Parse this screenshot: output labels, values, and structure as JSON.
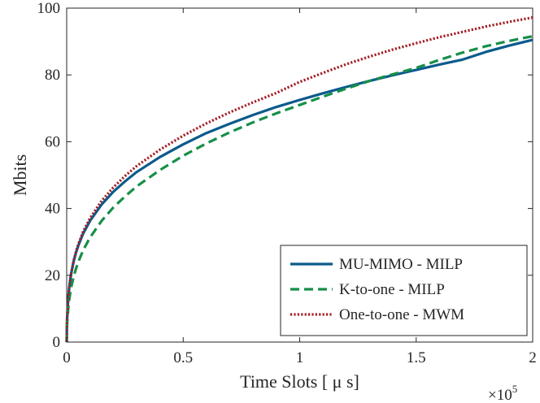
{
  "chart_data": {
    "type": "line",
    "title": "",
    "xlabel": "Time Slots [ μ s]",
    "ylabel": "Mbits",
    "xlim": [
      0,
      2
    ],
    "ylim": [
      0,
      100
    ],
    "x_scale_note": {
      "base": "×10",
      "exponent": "5"
    },
    "x_ticks": [
      0,
      0.5,
      1,
      1.5,
      2
    ],
    "x_tick_labels": [
      "0",
      "0.5",
      "1",
      "1.5",
      "2"
    ],
    "y_ticks": [
      0,
      20,
      40,
      60,
      80,
      100
    ],
    "y_tick_labels": [
      "0",
      "20",
      "40",
      "60",
      "80",
      "100"
    ],
    "grid": false,
    "legend_position": "bottom-right",
    "x": [
      0,
      0.0005,
      0.001,
      0.002,
      0.004,
      0.007,
      0.01,
      0.015,
      0.02,
      0.03,
      0.04,
      0.05,
      0.07,
      0.1,
      0.15,
      0.2,
      0.25,
      0.3,
      0.4,
      0.5,
      0.6,
      0.7,
      0.8,
      0.9,
      1.0,
      1.1,
      1.2,
      1.3,
      1.4,
      1.5,
      1.6,
      1.7,
      1.8,
      1.9,
      2.0
    ],
    "series": [
      {
        "name": "MU-MIMO - MILP",
        "color": "#0b5a8c",
        "style": "solid",
        "values": [
          0,
          3.3,
          5.2,
          7.3,
          10.3,
          13.3,
          15.7,
          18.5,
          20.8,
          24.2,
          26.8,
          28.9,
          32.4,
          36.3,
          41.2,
          45.0,
          48.1,
          50.9,
          55.4,
          59.2,
          62.6,
          65.4,
          68.0,
          70.4,
          72.5,
          74.5,
          76.4,
          78.2,
          79.9,
          81.5,
          83.1,
          84.6,
          86.9,
          88.8,
          90.5
        ]
      },
      {
        "name": "K-to-one - MILP",
        "color": "#168f48",
        "style": "dashed",
        "values": [
          0,
          2.4,
          3.7,
          5.4,
          7.8,
          10.2,
          12.2,
          14.6,
          16.6,
          19.6,
          22.0,
          24.0,
          27.4,
          31.3,
          36.3,
          40.3,
          43.6,
          46.6,
          51.5,
          55.8,
          59.5,
          62.8,
          65.8,
          68.5,
          71.0,
          73.5,
          75.9,
          78.2,
          80.2,
          82.1,
          84.5,
          86.7,
          88.6,
          90.2,
          91.6
        ]
      },
      {
        "name": "One-to-one - MWM",
        "color": "#a31f26",
        "style": "dotted",
        "values": [
          0,
          3.3,
          5.2,
          7.3,
          10.3,
          13.3,
          15.7,
          18.6,
          20.9,
          24.4,
          27.1,
          29.3,
          33.0,
          37.1,
          42.3,
          46.3,
          49.7,
          52.7,
          57.6,
          61.8,
          65.5,
          68.8,
          71.8,
          74.6,
          77.9,
          80.6,
          83.2,
          85.5,
          87.6,
          89.5,
          91.3,
          92.9,
          94.5,
          95.9,
          97.2
        ]
      }
    ]
  }
}
